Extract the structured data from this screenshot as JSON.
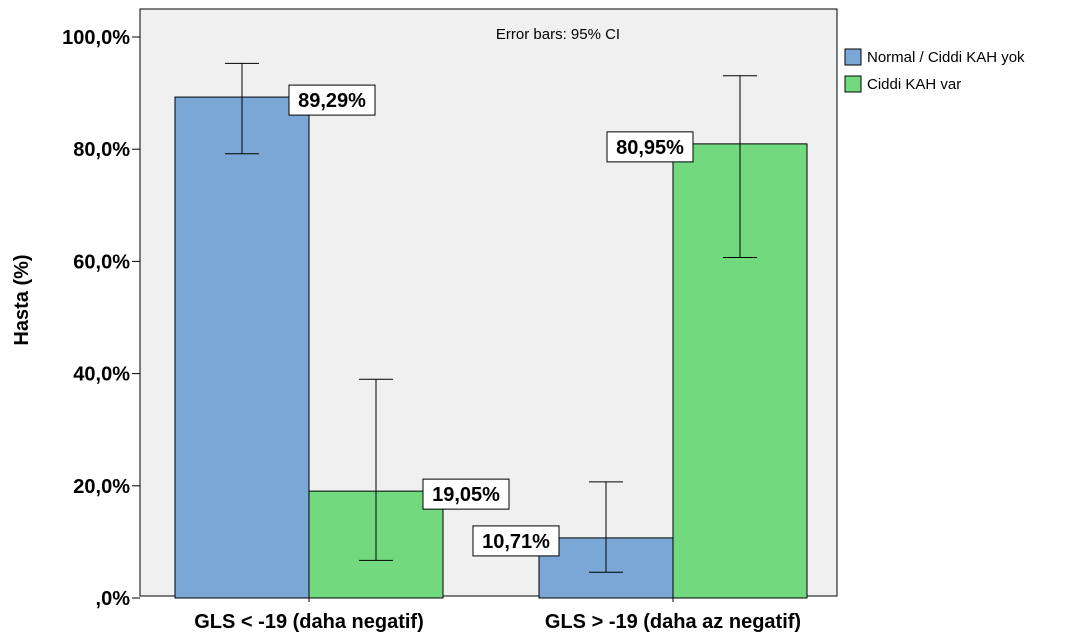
{
  "chart_data": {
    "type": "bar",
    "note": "Error bars: 95% CI",
    "ylabel": "Hasta (%)",
    "xlabel": "",
    "categories": [
      "GLS < -19 (daha negatif)",
      "GLS > -19 (daha az negatif)"
    ],
    "ylim": [
      0,
      100
    ],
    "yticks": [
      {
        "value": 0,
        "label": ",0%"
      },
      {
        "value": 20,
        "label": "20,0%"
      },
      {
        "value": 40,
        "label": "40,0%"
      },
      {
        "value": 60,
        "label": "60,0%"
      },
      {
        "value": 80,
        "label": "80,0%"
      },
      {
        "value": 100,
        "label": "100,0%"
      }
    ],
    "series": [
      {
        "name": "Normal / Ciddi KAH yok",
        "color": "#7aa7d6",
        "values": [
          89.29,
          10.71
        ],
        "labels": [
          "89,29%",
          "10,71%"
        ],
        "ci_low": [
          79.2,
          4.6
        ],
        "ci_high": [
          95.3,
          20.7
        ]
      },
      {
        "name": "Ciddi KAH var",
        "color": "#72d97f",
        "values": [
          19.05,
          80.95
        ],
        "labels": [
          "19,05%",
          "80,95%"
        ],
        "ci_low": [
          6.7,
          60.7
        ],
        "ci_high": [
          39.0,
          93.1
        ]
      }
    ],
    "grid": false,
    "legend_position": "right"
  }
}
